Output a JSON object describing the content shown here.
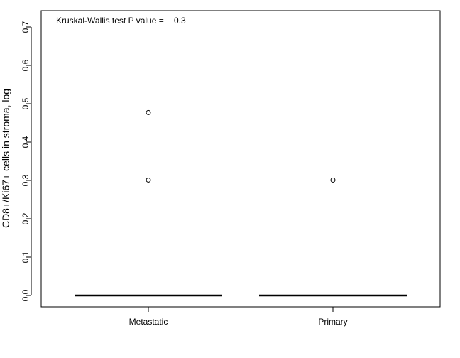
{
  "chart_data": {
    "type": "boxplot",
    "ylabel": "CD8+/Ki67+ cells in stroma, log",
    "xlabel": "",
    "ylim": [
      0,
      0.7
    ],
    "yticks": [
      "0.0",
      "0.1",
      "0.2",
      "0.3",
      "0.4",
      "0.5",
      "0.6",
      "0.7"
    ],
    "categories": [
      "Metastatic",
      "Primary"
    ],
    "boxes": [
      {
        "name": "Metastatic",
        "median": 0.0,
        "q1": 0.0,
        "q3": 0.0,
        "whisker_low": 0.0,
        "whisker_high": 0.0,
        "outliers": [
          0.477,
          0.301
        ]
      },
      {
        "name": "Primary",
        "median": 0.0,
        "q1": 0.0,
        "q3": 0.0,
        "whisker_low": 0.0,
        "whisker_high": 0.0,
        "outliers": [
          0.301
        ]
      }
    ],
    "annotation": {
      "label": "Kruskal-Wallis test P value =",
      "value": "0.3"
    },
    "grid": false,
    "legend": "none"
  }
}
